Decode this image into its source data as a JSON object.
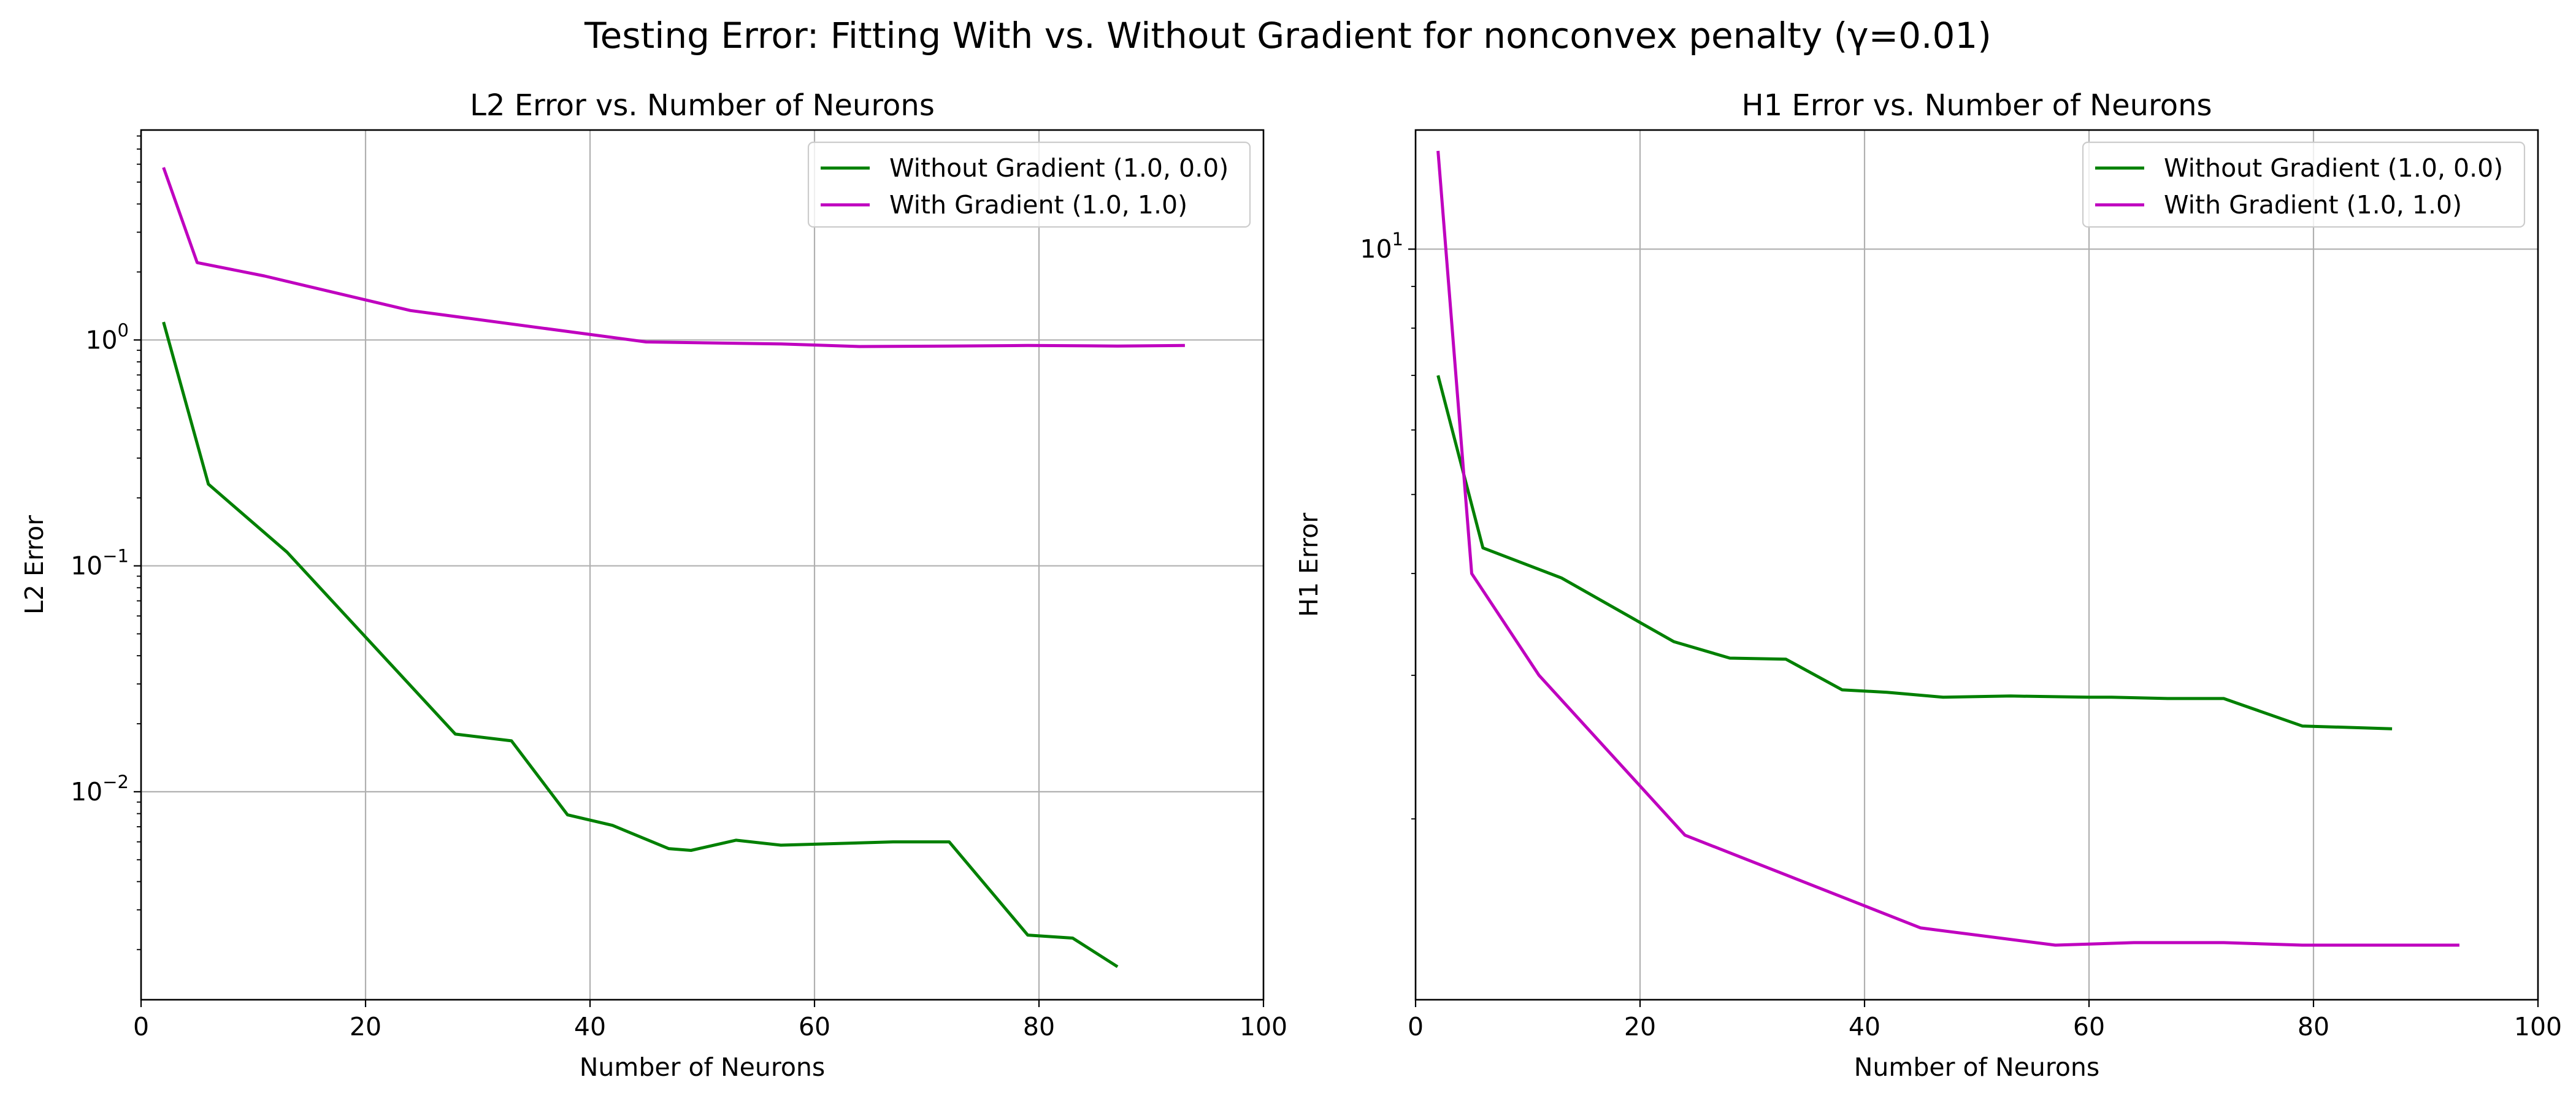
{
  "figure": {
    "suptitle": "Testing Error: Fitting With vs. Without Gradient for nonconvex penalty (γ=0.01)"
  },
  "colors": {
    "without_gradient": "#008000",
    "with_gradient": "#bf00bf",
    "grid": "#b0b0b0",
    "axes": "#000000"
  },
  "chart_data": [
    {
      "type": "line",
      "title": "L2 Error vs. Number of Neurons",
      "xlabel": "Number of Neurons",
      "ylabel": "L2 Error",
      "xlim": [
        0,
        100
      ],
      "ylim": [
        0.0012,
        8.5
      ],
      "yscale": "log",
      "grid": true,
      "legend_position": "top-right",
      "x_ticks": [
        "0",
        "20",
        "40",
        "60",
        "80",
        "100"
      ],
      "y_ticks": [
        {
          "base": "10",
          "exp": "−2",
          "value": 0.01
        },
        {
          "base": "10",
          "exp": "−1",
          "value": 0.1
        },
        {
          "base": "10",
          "exp": "0",
          "value": 1
        }
      ],
      "series": [
        {
          "name": "Without Gradient (1.0, 0.0)",
          "color": "#008000",
          "x": [
            2,
            6,
            13,
            28,
            33,
            38,
            42,
            47,
            49,
            53,
            57,
            67,
            72,
            79,
            83,
            87
          ],
          "y": [
            1.2,
            0.23,
            0.115,
            0.018,
            0.0168,
            0.0079,
            0.0071,
            0.0056,
            0.0055,
            0.0061,
            0.0058,
            0.006,
            0.006,
            0.00232,
            0.00225,
            0.00168
          ]
        },
        {
          "name": "With Gradient (1.0, 1.0)",
          "color": "#bf00bf",
          "x": [
            2,
            5,
            11,
            24,
            45,
            57,
            64,
            72,
            79,
            87,
            93
          ],
          "y": [
            5.8,
            2.2,
            1.92,
            1.35,
            0.98,
            0.96,
            0.935,
            0.94,
            0.945,
            0.94,
            0.945
          ]
        }
      ]
    },
    {
      "type": "line",
      "title": "H1 Error vs. Number of Neurons",
      "xlabel": "Number of Neurons",
      "ylabel": "H1 Error",
      "xlim": [
        0,
        100
      ],
      "ylim": [
        1.2,
        14.0
      ],
      "yscale": "log",
      "grid": true,
      "legend_position": "top-right",
      "x_ticks": [
        "0",
        "20",
        "40",
        "60",
        "80",
        "100"
      ],
      "y_ticks": [
        {
          "base": "10",
          "exp": "1",
          "value": 10
        }
      ],
      "series": [
        {
          "name": "Without Gradient (1.0, 0.0)",
          "color": "#008000",
          "x": [
            2,
            6,
            13,
            23,
            28,
            33,
            38,
            42,
            47,
            53,
            60,
            62,
            67,
            72,
            79,
            87
          ],
          "y": [
            7.0,
            4.3,
            3.95,
            3.3,
            3.15,
            3.14,
            2.88,
            2.86,
            2.82,
            2.83,
            2.82,
            2.82,
            2.81,
            2.81,
            2.6,
            2.58
          ]
        },
        {
          "name": "With Gradient (1.0, 1.0)",
          "color": "#bf00bf",
          "x": [
            2,
            5,
            11,
            24,
            45,
            57,
            64,
            72,
            79,
            87,
            93
          ],
          "y": [
            13.2,
            4.0,
            3.0,
            1.91,
            1.47,
            1.4,
            1.41,
            1.41,
            1.4,
            1.4,
            1.4
          ]
        }
      ]
    }
  ]
}
